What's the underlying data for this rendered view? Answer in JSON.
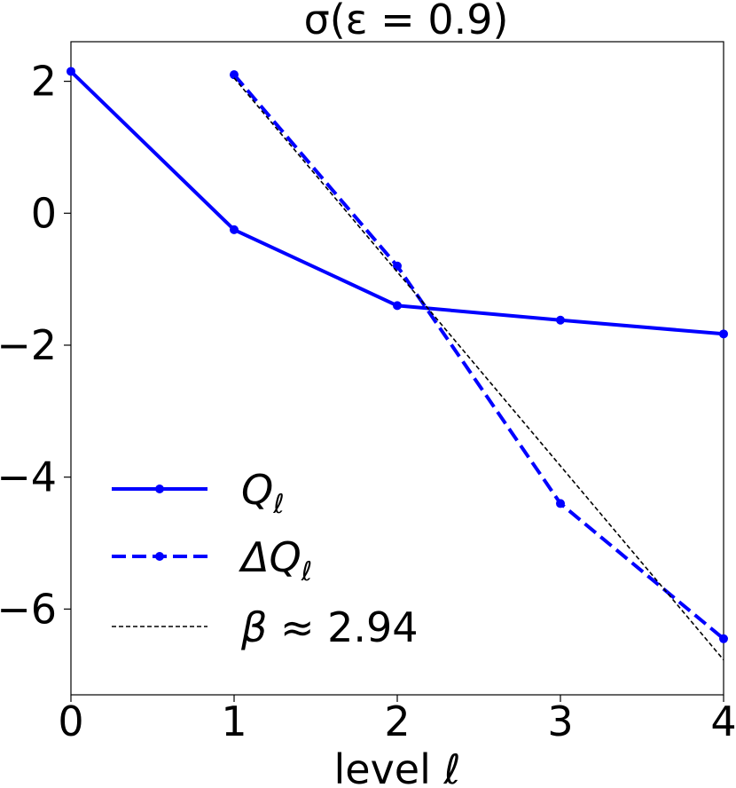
{
  "chart_data": {
    "type": "line",
    "title": "σ(ε = 0.9)",
    "xlabel": "level ℓ",
    "ylabel": "",
    "xlim": [
      0,
      4
    ],
    "ylim": [
      -7.3,
      2.6
    ],
    "x_ticks": [
      0,
      1,
      2,
      3,
      4
    ],
    "y_ticks": [
      2,
      0,
      -2,
      -4,
      -6
    ],
    "x_tick_labels": [
      "0",
      "1",
      "2",
      "3",
      "4"
    ],
    "y_tick_labels": [
      "2",
      "0",
      "−2",
      "−4",
      "−6"
    ],
    "grid": false,
    "legend_position": "lower-left",
    "series": [
      {
        "name": "Qℓ",
        "name_base": "Q",
        "name_sub": "ℓ",
        "style": "solid",
        "marker": "dot",
        "color": "#0000ff",
        "x": [
          0,
          1,
          2,
          3,
          4
        ],
        "y": [
          2.15,
          -0.25,
          -1.4,
          -1.62,
          -1.83
        ]
      },
      {
        "name": "ΔQℓ",
        "name_base": "ΔQ",
        "name_sub": "ℓ",
        "style": "dashed",
        "marker": "dot",
        "color": "#0000ff",
        "x": [
          1,
          2,
          3,
          4
        ],
        "y": [
          2.1,
          -0.8,
          -4.4,
          -6.45
        ]
      },
      {
        "name": "β ≈ 2.94",
        "name_base": "β",
        "name_rest": " ≈ 2.94",
        "style": "dotted-dash",
        "marker": "none",
        "color": "#000000",
        "x": [
          1,
          4
        ],
        "y": [
          2.05,
          -6.77
        ]
      }
    ]
  }
}
